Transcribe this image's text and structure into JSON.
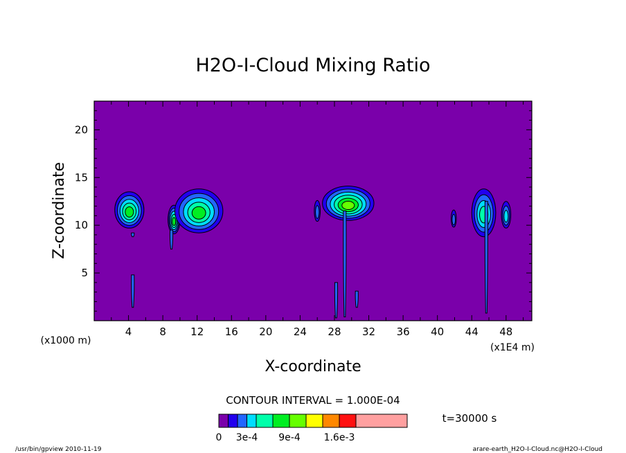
{
  "chart_data": {
    "type": "contour",
    "title": "H2O-I-Cloud Mixing Ratio",
    "xlabel": "X-coordinate",
    "ylabel": "Z-coordinate",
    "x_unit": "(x1E4 m)",
    "y_unit": "(x1000 m)",
    "xlim": [
      0,
      51
    ],
    "ylim": [
      0,
      23
    ],
    "x_ticks": [
      4,
      8,
      12,
      16,
      20,
      24,
      28,
      32,
      36,
      40,
      44,
      48
    ],
    "y_ticks": [
      5,
      10,
      15,
      20
    ],
    "contour_interval": "CONTOUR INTERVAL = 1.000E-04",
    "time_label": "t=30000 s",
    "colorbar": {
      "colors": [
        "#7a00aa",
        "#2200ee",
        "#2266ff",
        "#00ddff",
        "#00ffaa",
        "#00ee22",
        "#66ff00",
        "#ffff00",
        "#ff8800",
        "#ff1111",
        "#ffa0a0"
      ],
      "tick_labels": [
        "0",
        "3e-4",
        "9e-4",
        "1.6e-3"
      ],
      "tick_levels": [
        0,
        3,
        6,
        9
      ]
    },
    "clouds": [
      {
        "x": 4.1,
        "z": 11.6,
        "rx": 1.7,
        "rz": 1.9,
        "max_level": 5
      },
      {
        "x": 9.3,
        "z": 10.6,
        "rx": 0.7,
        "rz": 1.5,
        "max_level": 5
      },
      {
        "x": 12.2,
        "z": 11.5,
        "rx": 2.8,
        "rz": 2.3,
        "max_level": 5
      },
      {
        "x": 26.0,
        "z": 11.5,
        "rx": 0.35,
        "rz": 1.1,
        "max_level": 2
      },
      {
        "x": 29.6,
        "z": 12.3,
        "rx": 3.0,
        "rz": 1.8,
        "max_level": 6
      },
      {
        "x": 41.9,
        "z": 10.7,
        "rx": 0.3,
        "rz": 0.9,
        "max_level": 2
      },
      {
        "x": 45.4,
        "z": 11.3,
        "rx": 1.4,
        "rz": 2.5,
        "max_level": 4
      },
      {
        "x": 48.0,
        "z": 11.1,
        "rx": 0.55,
        "rz": 1.4,
        "max_level": 3
      }
    ],
    "filaments": [
      {
        "x": 4.5,
        "z_top": 9.2,
        "z_bottom": 8.8
      },
      {
        "x": 9.0,
        "z_top": 9.5,
        "z_bottom": 7.5
      },
      {
        "x": 29.2,
        "z_top": 11.5,
        "z_bottom": 0.4
      },
      {
        "x": 45.7,
        "z_top": 12.5,
        "z_bottom": 0.8
      },
      {
        "x": 4.5,
        "z_top": 4.8,
        "z_bottom": 1.4
      },
      {
        "x": 28.2,
        "z_top": 4.0,
        "z_bottom": 0.3
      },
      {
        "x": 30.6,
        "z_top": 3.1,
        "z_bottom": 1.4
      }
    ]
  },
  "footer": {
    "left": "/usr/bin/gpview   2010-11-19",
    "right": "arare-earth_H2O-I-Cloud.nc@H2O-I-Cloud"
  }
}
